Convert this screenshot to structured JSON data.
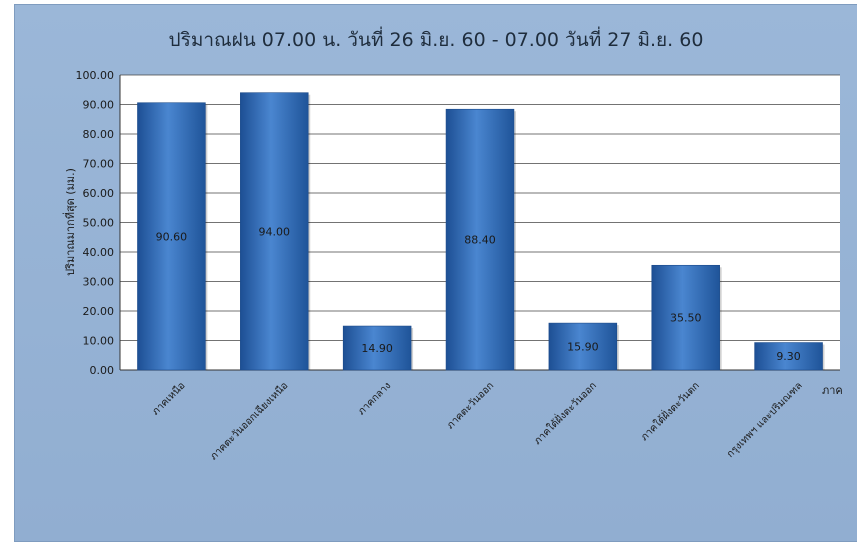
{
  "chart_data": {
    "type": "bar",
    "title": "ปริมาณฝน 07.00 น. วันที่ 26 มิ.ย. 60 - 07.00 วันที่ 27 มิ.ย. 60",
    "xlabel": "ภาค",
    "ylabel": "ปริมาณมากที่สุด (มม.)",
    "categories": [
      "ภาคเหนือ",
      "ภาคตะวันออกเฉียงเหนือ",
      "ภาคกลาง",
      "ภาคตะวันออก",
      "ภาคใต้ฝั่งตะวันออก",
      "ภาคใต้ฝั่งตะวันตก",
      "กรุงเทพฯ และปริมณฑล"
    ],
    "values": [
      90.6,
      94.0,
      14.9,
      88.4,
      15.9,
      35.5,
      9.3
    ],
    "value_labels": [
      "90.60",
      "94.00",
      "14.90",
      "88.40",
      "15.90",
      "35.50",
      "9.30"
    ],
    "y_ticks": [
      "0.00",
      "10.00",
      "20.00",
      "30.00",
      "40.00",
      "50.00",
      "60.00",
      "70.00",
      "80.00",
      "90.00",
      "100.00"
    ],
    "ylim": [
      0,
      100
    ],
    "grid": true,
    "legend": "none",
    "colors": {
      "bar": "#2f6fbf",
      "bar_dark": "#1d4f94",
      "bar_light": "#5b94d8",
      "background": "#95b2d4",
      "plot": "#ffffff"
    }
  }
}
